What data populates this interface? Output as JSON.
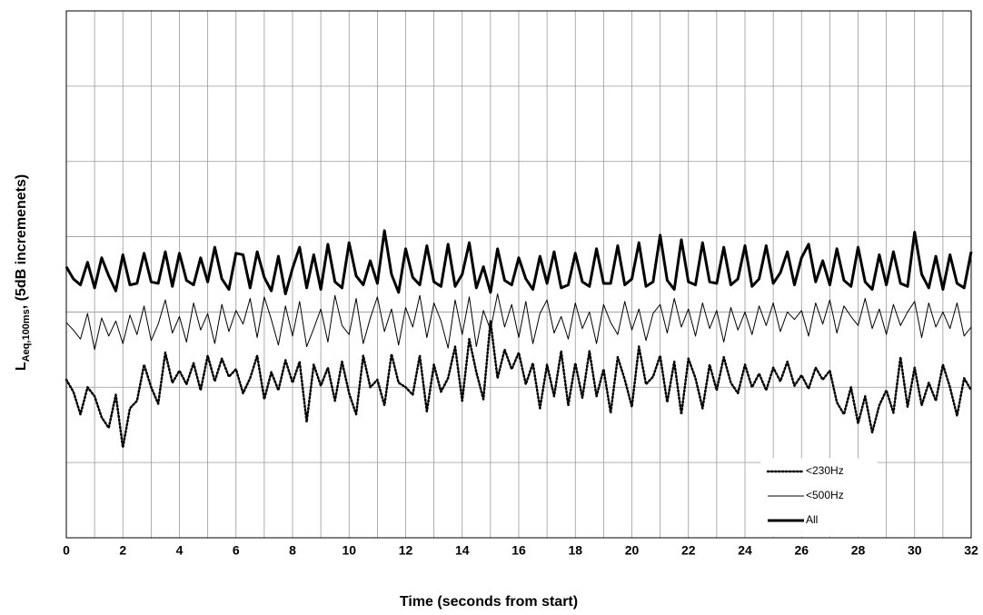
{
  "chart_data": {
    "type": "line",
    "xlabel": "Time (seconds from start)",
    "ylabel": {
      "main": "L",
      "sub": "Aeq,100ms",
      "rest": ", (5dB incremenets)"
    },
    "xlim": [
      0,
      32
    ],
    "xticks": [
      0,
      2,
      4,
      6,
      8,
      10,
      12,
      14,
      16,
      18,
      20,
      22,
      24,
      26,
      28,
      30,
      32
    ],
    "xminor": [
      1,
      3,
      5,
      7,
      9,
      11,
      13,
      15,
      17,
      19,
      21,
      23,
      25,
      27,
      29,
      31
    ],
    "ylim": [
      0,
      35
    ],
    "yticks": [
      0,
      5,
      10,
      15,
      20,
      25,
      30,
      35
    ],
    "grid": true,
    "legend": "lower right",
    "x": [
      0,
      0.25,
      0.5,
      0.75,
      1,
      1.25,
      1.5,
      1.75,
      2,
      2.25,
      2.5,
      2.75,
      3,
      3.25,
      3.5,
      3.75,
      4,
      4.25,
      4.5,
      4.75,
      5,
      5.25,
      5.5,
      5.75,
      6,
      6.25,
      6.5,
      6.75,
      7,
      7.25,
      7.5,
      7.75,
      8,
      8.25,
      8.5,
      8.75,
      9,
      9.25,
      9.5,
      9.75,
      10,
      10.25,
      10.5,
      10.75,
      11,
      11.25,
      11.5,
      11.75,
      12,
      12.25,
      12.5,
      12.75,
      13,
      13.25,
      13.5,
      13.75,
      14,
      14.25,
      14.5,
      14.75,
      15,
      15.25,
      15.5,
      15.75,
      16,
      16.25,
      16.5,
      16.75,
      17,
      17.25,
      17.5,
      17.75,
      18,
      18.25,
      18.5,
      18.75,
      19,
      19.25,
      19.5,
      19.75,
      20,
      20.25,
      20.5,
      20.75,
      21,
      21.25,
      21.5,
      21.75,
      22,
      22.25,
      22.5,
      22.75,
      23,
      23.25,
      23.5,
      23.75,
      24,
      24.25,
      24.5,
      24.75,
      25,
      25.25,
      25.5,
      25.75,
      26,
      26.25,
      26.5,
      26.75,
      27,
      27.25,
      27.5,
      27.75,
      28,
      28.25,
      28.5,
      28.75,
      29,
      29.25,
      29.5,
      29.75,
      30,
      30.25,
      30.5,
      30.75,
      31,
      31.25,
      31.5,
      31.75,
      32
    ],
    "series": [
      {
        "name": "<230Hz",
        "color": "#000000",
        "width": 2.5,
        "dash": "dotted",
        "values": [
          10.5,
          9.7,
          8.2,
          10.0,
          9.4,
          8.0,
          7.3,
          9.5,
          6.0,
          8.6,
          9.1,
          11.5,
          10.0,
          8.9,
          12.3,
          10.3,
          11.1,
          10.2,
          11.6,
          9.8,
          12.1,
          10.4,
          11.9,
          10.7,
          11.2,
          9.6,
          10.6,
          12.1,
          9.2,
          11.0,
          9.8,
          11.8,
          10.3,
          11.7,
          7.7,
          11.5,
          10.1,
          11.3,
          9.1,
          11.7,
          9.6,
          8.2,
          12.1,
          10.0,
          10.5,
          8.8,
          12.2,
          10.3,
          10.0,
          9.5,
          12.1,
          8.4,
          11.5,
          9.7,
          10.6,
          12.7,
          9.1,
          13.2,
          11.0,
          9.2,
          14.4,
          10.6,
          12.5,
          11.2,
          12.3,
          10.2,
          11.6,
          8.6,
          11.5,
          9.4,
          12.4,
          8.8,
          11.6,
          9.3,
          12.4,
          9.4,
          11.2,
          8.3,
          12.0,
          10.5,
          8.7,
          12.7,
          10.2,
          10.7,
          12.1,
          9.0,
          11.7,
          8.2,
          11.9,
          10.6,
          8.6,
          11.5,
          9.8,
          12.0,
          10.3,
          9.6,
          11.5,
          10.0,
          10.9,
          9.8,
          11.3,
          10.4,
          11.7,
          10.1,
          10.8,
          9.9,
          11.3,
          10.5,
          11.1,
          9.0,
          8.2,
          10.0,
          7.6,
          9.4,
          7.0,
          8.8,
          9.8,
          8.3,
          12.0,
          8.7,
          11.3,
          8.8,
          10.3,
          9.1,
          11.5,
          10.0,
          8.1,
          10.6,
          9.8
        ]
      },
      {
        "name": "<500Hz",
        "color": "#000000",
        "width": 1,
        "dash": "solid",
        "values": [
          14.3,
          13.8,
          13.2,
          14.9,
          12.5,
          14.6,
          13.4,
          14.4,
          12.9,
          14.8,
          13.5,
          15.4,
          13.1,
          14.2,
          15.8,
          13.6,
          14.7,
          13.0,
          15.6,
          13.8,
          14.9,
          12.9,
          15.5,
          13.7,
          15.1,
          14.2,
          15.9,
          13.3,
          16.0,
          14.5,
          12.8,
          15.4,
          13.4,
          15.7,
          12.7,
          13.9,
          15.2,
          13.0,
          16.1,
          14.1,
          13.5,
          15.9,
          12.9,
          14.6,
          16.0,
          13.7,
          15.2,
          12.8,
          15.3,
          14.0,
          16.1,
          13.3,
          15.6,
          14.4,
          12.6,
          15.8,
          13.5,
          16.0,
          12.7,
          15.1,
          13.8,
          16.2,
          14.0,
          15.5,
          13.3,
          15.7,
          12.9,
          14.9,
          15.8,
          13.6,
          14.7,
          13.2,
          15.6,
          13.9,
          15.0,
          12.9,
          15.5,
          14.3,
          13.5,
          15.7,
          13.8,
          15.2,
          13.1,
          14.9,
          15.5,
          13.6,
          15.9,
          14.0,
          15.2,
          13.4,
          15.6,
          13.9,
          15.1,
          13.0,
          15.3,
          13.8,
          15.0,
          13.5,
          15.4,
          14.1,
          15.6,
          13.7,
          15.0,
          14.5,
          15.1,
          13.4,
          15.6,
          14.2,
          15.8,
          13.6,
          15.4,
          14.7,
          14.1,
          15.9,
          13.9,
          15.2,
          13.5,
          15.5,
          14.1,
          15.0,
          15.7,
          13.3,
          15.6,
          14.0,
          15.0,
          13.9,
          15.6,
          13.4,
          14.0
        ]
      },
      {
        "name": "All",
        "color": "#000000",
        "width": 3,
        "dash": "solid",
        "values": [
          18.0,
          17.2,
          16.8,
          18.3,
          16.6,
          18.6,
          17.4,
          16.4,
          18.8,
          16.8,
          16.9,
          18.9,
          17.0,
          16.9,
          19.0,
          16.7,
          18.9,
          17.1,
          16.8,
          18.6,
          17.0,
          19.3,
          17.2,
          16.5,
          18.9,
          18.8,
          16.6,
          19.0,
          17.3,
          16.4,
          18.7,
          16.2,
          17.9,
          19.3,
          16.6,
          18.8,
          16.5,
          19.5,
          17.0,
          16.6,
          19.6,
          17.4,
          16.8,
          18.4,
          16.9,
          20.4,
          17.5,
          16.3,
          19.2,
          17.3,
          16.8,
          19.4,
          17.0,
          16.7,
          19.5,
          16.7,
          17.5,
          19.6,
          16.6,
          18.0,
          16.3,
          19.2,
          17.1,
          16.8,
          18.6,
          17.2,
          16.5,
          18.7,
          16.9,
          19.0,
          16.6,
          16.8,
          18.9,
          17.0,
          16.7,
          19.2,
          16.9,
          16.9,
          19.4,
          16.8,
          17.2,
          19.6,
          16.7,
          17.0,
          20.1,
          17.1,
          16.5,
          19.8,
          17.0,
          16.8,
          19.6,
          17.0,
          16.9,
          19.3,
          16.8,
          17.2,
          19.4,
          16.7,
          17.2,
          19.4,
          16.9,
          17.6,
          19.0,
          16.8,
          18.6,
          19.5,
          17.0,
          18.4,
          16.8,
          19.2,
          17.1,
          16.7,
          19.3,
          17.0,
          16.5,
          18.8,
          16.8,
          19.0,
          16.9,
          16.7,
          20.3,
          17.5,
          16.6,
          18.7,
          16.5,
          18.8,
          16.9,
          16.6,
          19.0
        ]
      }
    ]
  }
}
